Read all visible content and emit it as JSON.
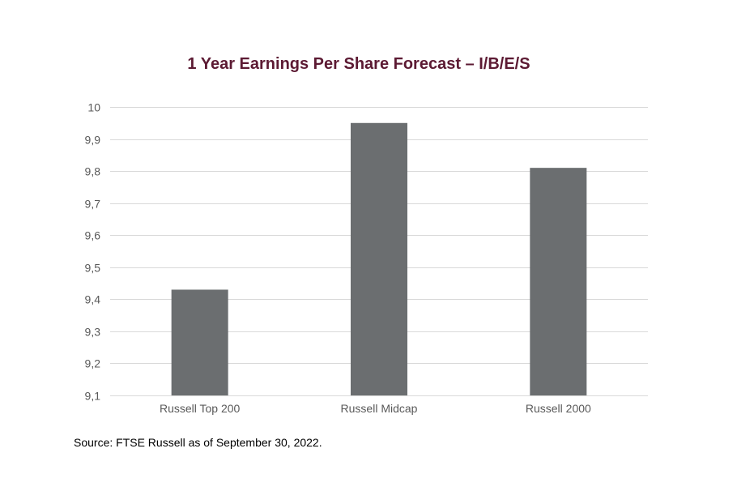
{
  "chart_data": {
    "type": "bar",
    "title": "1 Year Earnings Per Share Forecast – I/B/E/S",
    "categories": [
      "Russell Top 200",
      "Russell Midcap",
      "Russell 2000"
    ],
    "values": [
      9.43,
      9.95,
      9.81
    ],
    "ylim": [
      9.1,
      10
    ],
    "yticks": [
      "9,1",
      "9,2",
      "9,3",
      "9,4",
      "9,5",
      "9,6",
      "9,7",
      "9,8",
      "9,9",
      "10"
    ],
    "ytick_values": [
      9.1,
      9.2,
      9.3,
      9.4,
      9.5,
      9.6,
      9.7,
      9.8,
      9.9,
      10
    ],
    "grid": true,
    "legend": "none",
    "bar_color": "#6b6e70",
    "grid_color": "#d9d9d9"
  },
  "footer": {
    "source": "Source: FTSE Russell as of September 30, 2022."
  }
}
